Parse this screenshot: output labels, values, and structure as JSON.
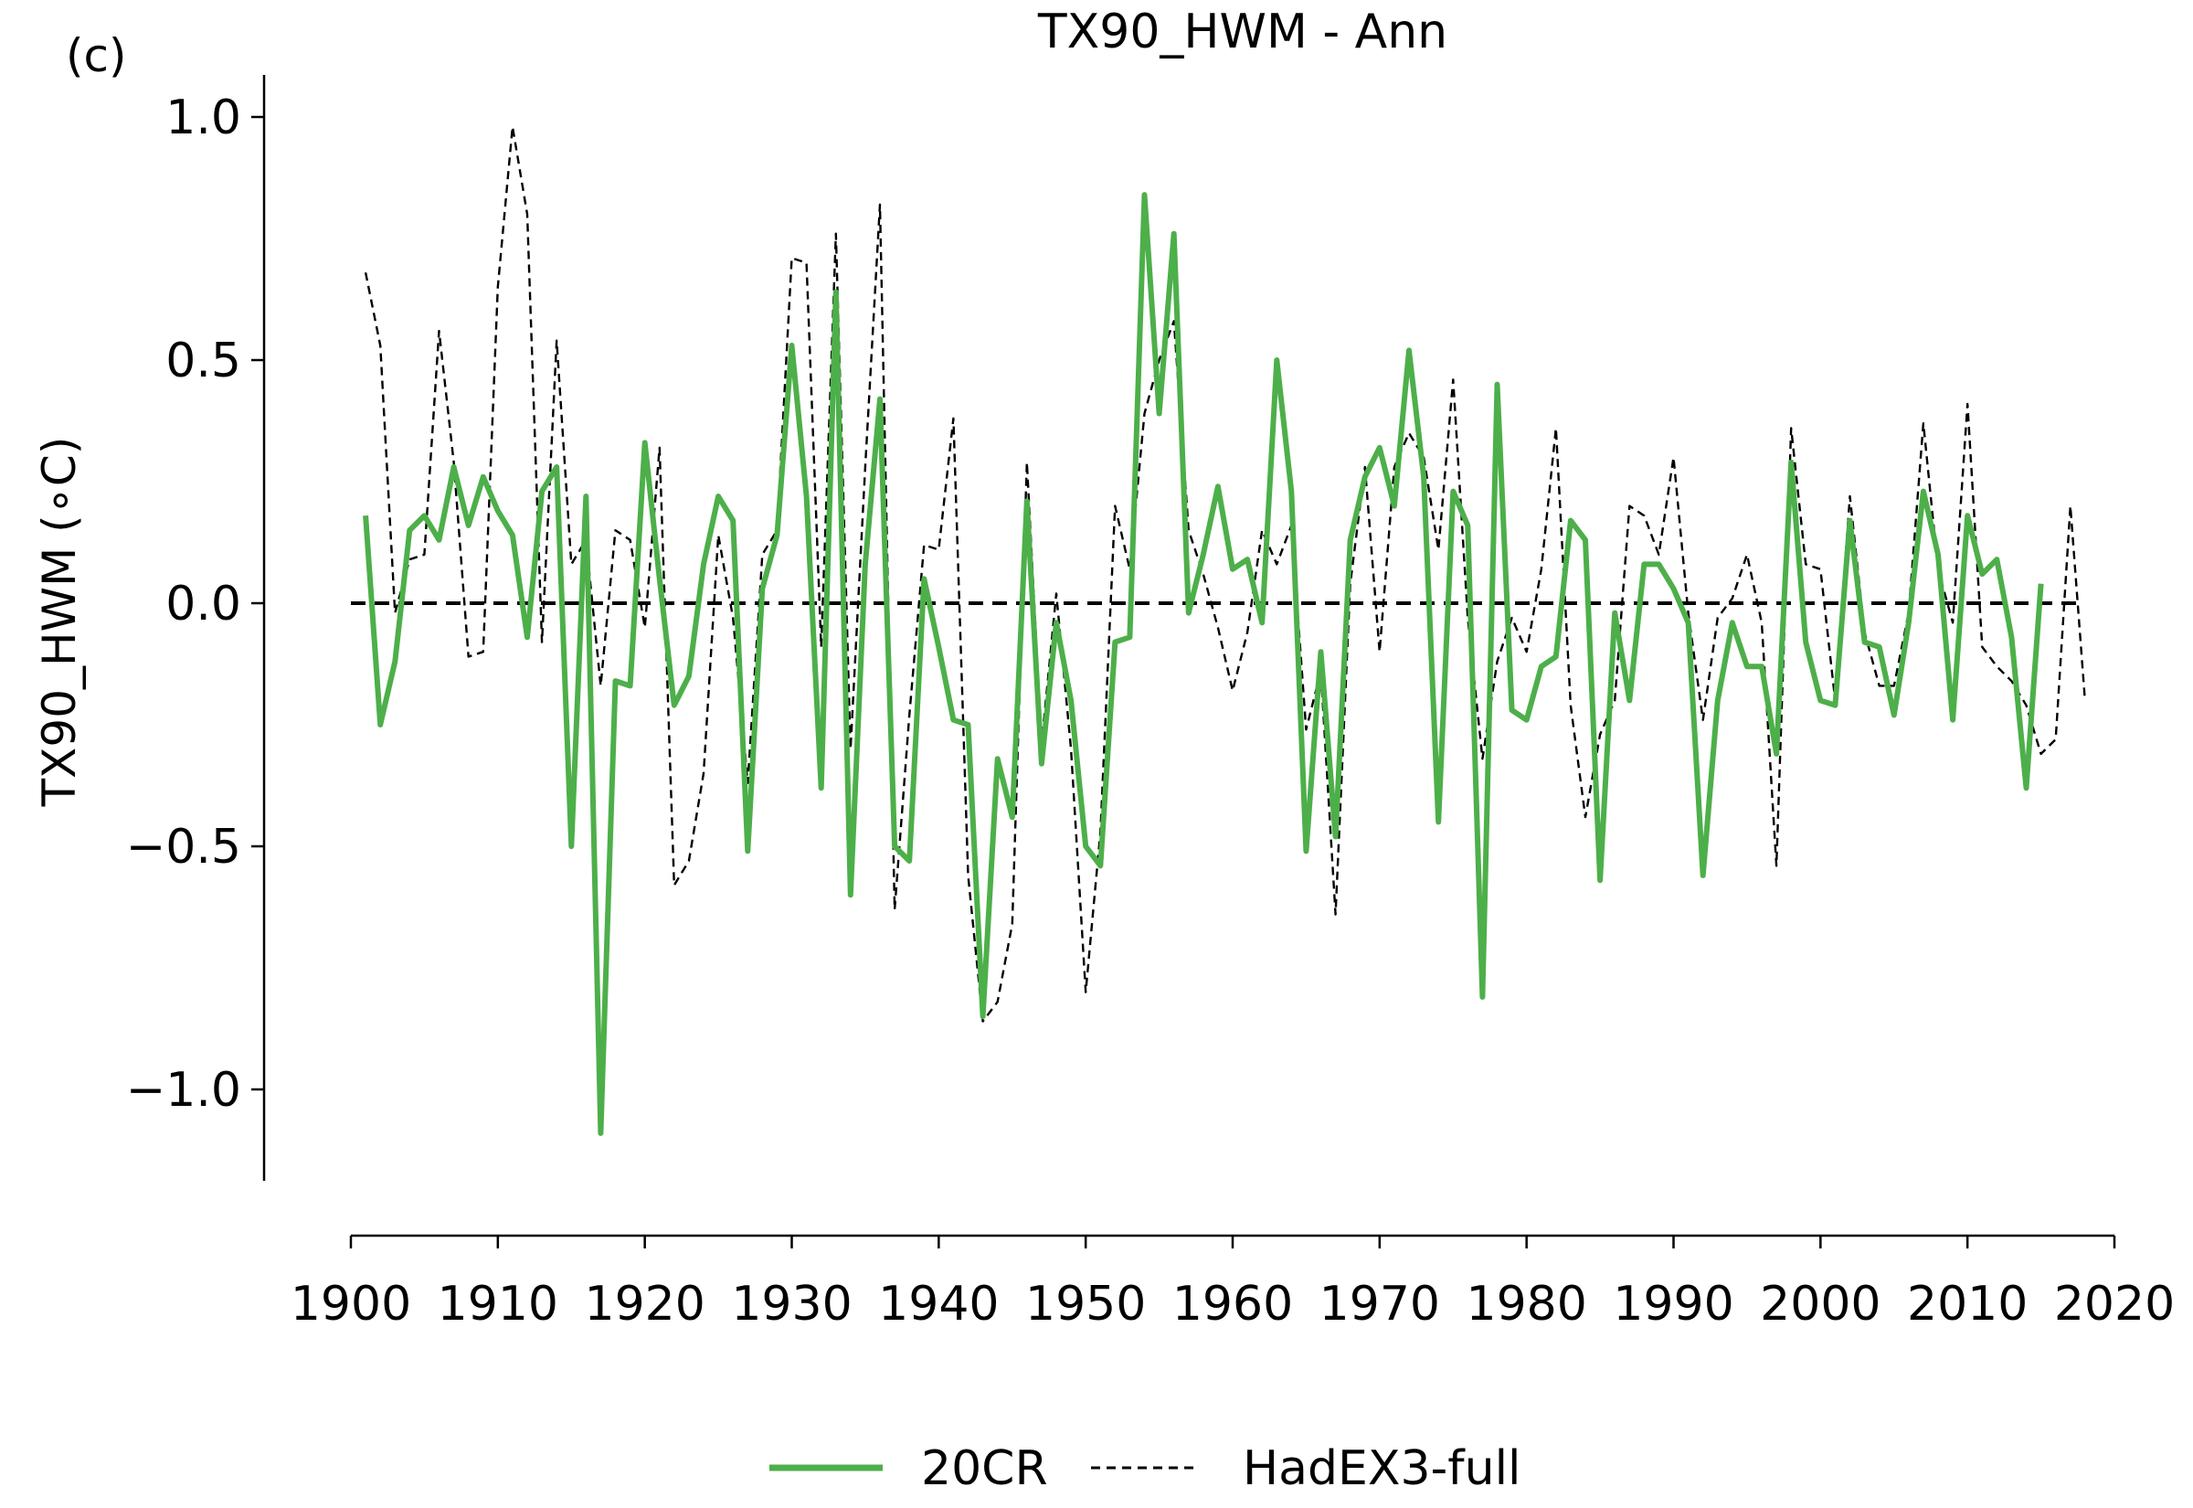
{
  "chart_data": {
    "type": "line",
    "panel_label": "(c)",
    "title": "TX90_HWM - Ann",
    "xlabel": "",
    "ylabel": "TX90_HWM (∘C)",
    "xlim": [
      1900,
      2020
    ],
    "ylim": [
      -1.2,
      1.1
    ],
    "x_ticks": [
      1900,
      1910,
      1920,
      1930,
      1940,
      1950,
      1960,
      1970,
      1980,
      1990,
      2000,
      2010,
      2020
    ],
    "y_ticks": [
      1.0,
      0.5,
      0.0,
      -0.5,
      -1.0
    ],
    "y_tick_labels": [
      "1.0",
      "0.5",
      "0.0",
      "−0.5",
      "−1.0"
    ],
    "grid": false,
    "legend_position": "bottom-center",
    "zero_line": {
      "y": 0.0,
      "style": "dashed",
      "color": "#000000"
    },
    "series": [
      {
        "name": "20CR",
        "color": "#4daf4a",
        "style": "solid",
        "x": [
          1901,
          1902,
          1903,
          1904,
          1905,
          1906,
          1907,
          1908,
          1909,
          1910,
          1911,
          1912,
          1913,
          1914,
          1915,
          1916,
          1917,
          1918,
          1919,
          1920,
          1921,
          1922,
          1923,
          1924,
          1925,
          1926,
          1927,
          1928,
          1929,
          1930,
          1931,
          1932,
          1933,
          1934,
          1935,
          1936,
          1937,
          1938,
          1939,
          1940,
          1941,
          1942,
          1943,
          1944,
          1945,
          1946,
          1947,
          1948,
          1949,
          1950,
          1951,
          1952,
          1953,
          1954,
          1955,
          1956,
          1957,
          1958,
          1959,
          1960,
          1961,
          1962,
          1963,
          1964,
          1965,
          1966,
          1967,
          1968,
          1969,
          1970,
          1971,
          1972,
          1973,
          1974,
          1975,
          1976,
          1977,
          1978,
          1979,
          1980,
          1981,
          1982,
          1983,
          1984,
          1985,
          1986,
          1987,
          1988,
          1989,
          1990,
          1991,
          1992,
          1993,
          1994,
          1995,
          1996,
          1997,
          1998,
          1999,
          2000,
          2001,
          2002,
          2003,
          2004,
          2005,
          2006,
          2007,
          2008,
          2009,
          2010,
          2011,
          2012,
          2013,
          2014,
          2015
        ],
        "y": [
          0.18,
          -0.25,
          -0.12,
          0.15,
          0.18,
          0.13,
          0.28,
          0.16,
          0.26,
          0.19,
          0.14,
          -0.07,
          0.23,
          0.28,
          -0.5,
          0.22,
          -1.09,
          -0.16,
          -0.17,
          0.33,
          0.05,
          -0.21,
          -0.15,
          0.08,
          0.22,
          0.17,
          -0.51,
          0.03,
          0.14,
          0.53,
          0.22,
          -0.38,
          0.64,
          -0.6,
          0.08,
          0.42,
          -0.5,
          -0.53,
          0.05,
          -0.09,
          -0.24,
          -0.25,
          -0.85,
          -0.32,
          -0.44,
          0.21,
          -0.33,
          -0.04,
          -0.2,
          -0.5,
          -0.54,
          -0.08,
          -0.07,
          0.84,
          0.39,
          0.76,
          -0.02,
          0.1,
          0.24,
          0.07,
          0.09,
          -0.04,
          0.5,
          0.23,
          -0.51,
          -0.1,
          -0.48,
          0.13,
          0.26,
          0.32,
          0.2,
          0.52,
          0.26,
          -0.45,
          0.23,
          0.16,
          -0.81,
          0.45,
          -0.22,
          -0.24,
          -0.13,
          -0.11,
          0.17,
          0.13,
          -0.57,
          -0.02,
          -0.2,
          0.08,
          0.08,
          0.03,
          -0.04,
          -0.56,
          -0.2,
          -0.04,
          -0.13,
          -0.13,
          -0.31,
          0.29,
          -0.08,
          -0.2,
          -0.21,
          0.17,
          -0.08,
          -0.09,
          -0.23,
          -0.04,
          0.23,
          0.1,
          -0.24,
          0.18,
          0.06,
          0.09,
          -0.07,
          -0.38,
          0.04
        ]
      },
      {
        "name": "HadEX3-full",
        "color": "#000000",
        "style": "dashed",
        "x": [
          1901,
          1902,
          1903,
          1904,
          1905,
          1906,
          1907,
          1908,
          1909,
          1910,
          1911,
          1912,
          1913,
          1914,
          1915,
          1916,
          1917,
          1918,
          1919,
          1920,
          1921,
          1922,
          1923,
          1924,
          1925,
          1926,
          1927,
          1928,
          1929,
          1930,
          1931,
          1932,
          1933,
          1934,
          1935,
          1936,
          1937,
          1938,
          1939,
          1940,
          1941,
          1942,
          1943,
          1944,
          1945,
          1946,
          1947,
          1948,
          1949,
          1950,
          1951,
          1952,
          1953,
          1954,
          1955,
          1956,
          1957,
          1958,
          1959,
          1960,
          1961,
          1962,
          1963,
          1964,
          1965,
          1966,
          1967,
          1968,
          1969,
          1970,
          1971,
          1972,
          1973,
          1974,
          1975,
          1976,
          1977,
          1978,
          1979,
          1980,
          1981,
          1982,
          1983,
          1984,
          1985,
          1986,
          1987,
          1988,
          1989,
          1990,
          1991,
          1992,
          1993,
          1994,
          1995,
          1996,
          1997,
          1998,
          1999,
          2000,
          2001,
          2002,
          2003,
          2004,
          2005,
          2006,
          2007,
          2008,
          2009,
          2010,
          2011,
          2012,
          2013,
          2014,
          2015,
          2016,
          2017,
          2018
        ],
        "y": [
          0.68,
          0.53,
          -0.02,
          0.09,
          0.1,
          0.56,
          0.29,
          -0.11,
          -0.1,
          0.65,
          0.98,
          0.8,
          -0.08,
          0.54,
          0.08,
          0.13,
          -0.17,
          0.15,
          0.13,
          -0.05,
          0.32,
          -0.58,
          -0.53,
          -0.35,
          0.14,
          -0.03,
          -0.37,
          0.1,
          0.15,
          0.71,
          0.7,
          -0.09,
          0.76,
          -0.3,
          0.28,
          0.82,
          -0.63,
          -0.23,
          0.12,
          0.11,
          0.38,
          -0.56,
          -0.86,
          -0.82,
          -0.66,
          0.29,
          -0.29,
          0.02,
          -0.3,
          -0.8,
          -0.47,
          0.2,
          0.07,
          0.39,
          0.5,
          0.58,
          0.15,
          0.06,
          -0.05,
          -0.18,
          -0.06,
          0.15,
          0.08,
          0.16,
          -0.26,
          -0.14,
          -0.64,
          0.04,
          0.28,
          -0.1,
          0.28,
          0.35,
          0.3,
          0.11,
          0.46,
          -0.03,
          -0.32,
          -0.12,
          -0.03,
          -0.1,
          0.07,
          0.36,
          -0.21,
          -0.44,
          -0.27,
          -0.2,
          0.2,
          0.18,
          0.1,
          0.3,
          -0.02,
          -0.24,
          -0.03,
          0.01,
          0.1,
          -0.04,
          -0.54,
          0.36,
          0.08,
          0.07,
          -0.2,
          0.22,
          -0.06,
          -0.17,
          -0.17,
          -0.02,
          0.37,
          0.07,
          -0.04,
          0.41,
          -0.09,
          -0.13,
          -0.16,
          -0.21,
          -0.31,
          -0.28,
          0.2,
          -0.2
        ]
      }
    ]
  }
}
